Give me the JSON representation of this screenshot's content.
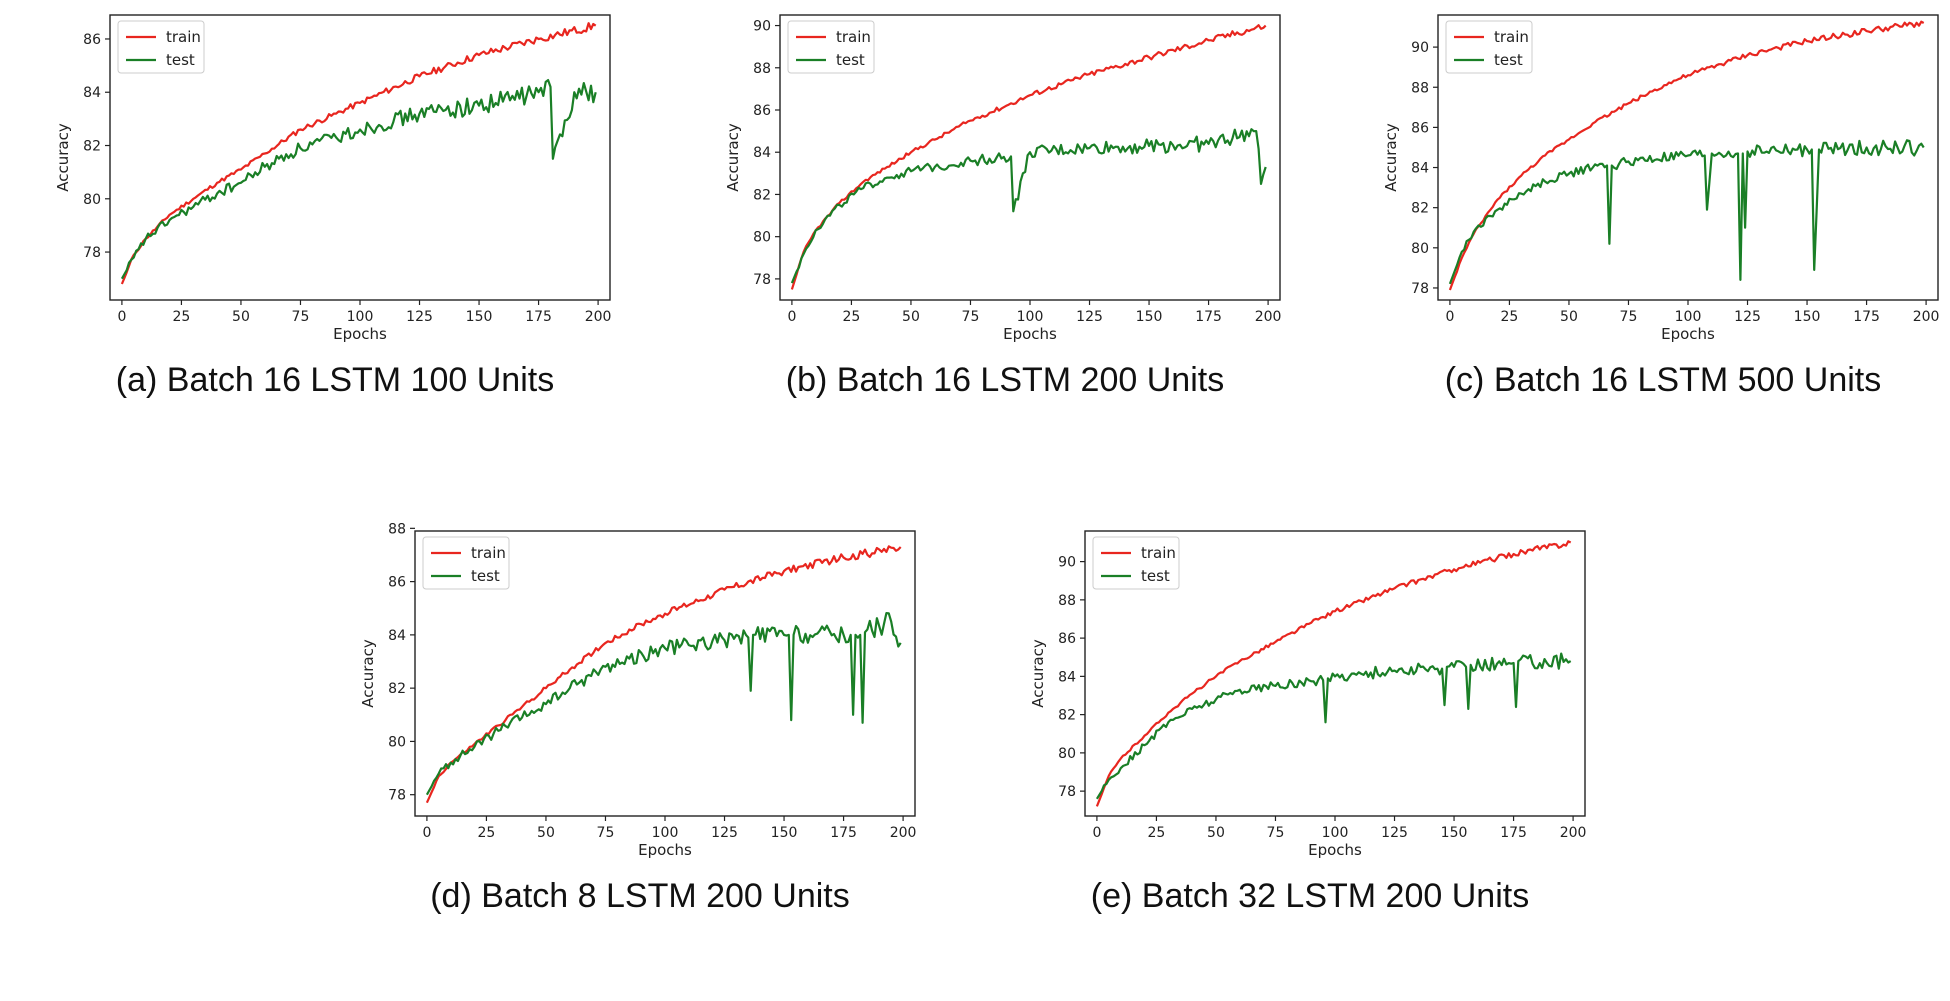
{
  "chart_data": [
    {
      "type": "line",
      "caption": "(a) Batch 16 LSTM 100 Units",
      "xlabel": "Epochs",
      "ylabel": "Accuracy",
      "xlim": [
        -5,
        205
      ],
      "ylim": [
        76.2,
        86.9
      ],
      "xticks": [
        0,
        25,
        50,
        75,
        100,
        125,
        150,
        175,
        200
      ],
      "yticks": [
        78,
        80,
        82,
        84,
        86
      ],
      "legend": "top-left",
      "series": [
        {
          "name": "train",
          "color": "#e8261f",
          "x": [
            0,
            5,
            10,
            20,
            30,
            40,
            50,
            60,
            75,
            90,
            100,
            125,
            150,
            175,
            199
          ],
          "y": [
            76.8,
            77.9,
            78.5,
            79.4,
            80.0,
            80.6,
            81.1,
            81.7,
            82.6,
            83.2,
            83.6,
            84.6,
            85.4,
            86.0,
            86.5
          ]
        },
        {
          "name": "test",
          "color": "#1a7f26",
          "x": [
            0,
            5,
            10,
            20,
            30,
            40,
            50,
            60,
            75,
            90,
            100,
            125,
            150,
            175,
            180,
            181,
            190,
            199
          ],
          "y": [
            77.0,
            77.8,
            78.5,
            79.2,
            79.7,
            80.2,
            80.6,
            81.2,
            81.9,
            82.3,
            82.6,
            83.2,
            83.5,
            84.0,
            84.2,
            81.5,
            84.0,
            84.0
          ]
        }
      ]
    },
    {
      "type": "line",
      "caption": "(b) Batch 16 LSTM 200 Units",
      "xlabel": "Epochs",
      "ylabel": "Accuracy",
      "xlim": [
        -5,
        205
      ],
      "ylim": [
        77.0,
        90.5
      ],
      "xticks": [
        0,
        25,
        50,
        75,
        100,
        125,
        150,
        175,
        200
      ],
      "yticks": [
        78,
        80,
        82,
        84,
        86,
        88,
        90
      ],
      "legend": "top-left",
      "series": [
        {
          "name": "train",
          "color": "#e8261f",
          "x": [
            0,
            5,
            10,
            20,
            30,
            40,
            50,
            60,
            75,
            90,
            100,
            125,
            150,
            175,
            199
          ],
          "y": [
            77.5,
            79.3,
            80.3,
            81.6,
            82.6,
            83.3,
            84.0,
            84.6,
            85.5,
            86.2,
            86.7,
            87.7,
            88.5,
            89.3,
            90.0
          ]
        },
        {
          "name": "test",
          "color": "#1a7f26",
          "x": [
            0,
            5,
            10,
            20,
            30,
            40,
            50,
            60,
            75,
            92,
            93,
            100,
            125,
            150,
            175,
            195,
            197,
            199
          ],
          "y": [
            77.8,
            79.2,
            80.3,
            81.5,
            82.3,
            82.8,
            83.1,
            83.3,
            83.6,
            83.8,
            81.2,
            84.0,
            84.2,
            84.3,
            84.4,
            85.0,
            82.5,
            83.3
          ]
        }
      ]
    },
    {
      "type": "line",
      "caption": "(c) Batch 16 LSTM 500 Units",
      "xlabel": "Epochs",
      "ylabel": "Accuracy",
      "xlim": [
        -5,
        205
      ],
      "ylim": [
        77.4,
        91.6
      ],
      "xticks": [
        0,
        25,
        50,
        75,
        100,
        125,
        150,
        175,
        200
      ],
      "yticks": [
        78,
        80,
        82,
        84,
        86,
        88,
        90
      ],
      "legend": "top-left",
      "series": [
        {
          "name": "train",
          "color": "#e8261f",
          "x": [
            0,
            5,
            10,
            20,
            30,
            40,
            50,
            60,
            75,
            90,
            100,
            125,
            150,
            175,
            199
          ],
          "y": [
            77.9,
            79.5,
            80.7,
            82.4,
            83.6,
            84.6,
            85.4,
            86.2,
            87.2,
            88.1,
            88.6,
            89.6,
            90.3,
            90.8,
            91.2
          ]
        },
        {
          "name": "test",
          "color": "#1a7f26",
          "x": [
            0,
            5,
            10,
            20,
            30,
            40,
            50,
            60,
            66,
            67,
            68,
            75,
            100,
            107,
            108,
            110,
            121,
            122,
            123,
            124,
            125,
            150,
            152,
            153,
            155,
            175,
            199
          ],
          "y": [
            78.2,
            79.8,
            80.8,
            81.9,
            82.7,
            83.3,
            83.7,
            84.0,
            84.1,
            80.2,
            84.1,
            84.3,
            84.6,
            84.6,
            81.9,
            84.7,
            84.7,
            78.4,
            84.7,
            81.0,
            84.8,
            84.9,
            84.9,
            78.9,
            84.9,
            85.0,
            85.0
          ]
        }
      ]
    },
    {
      "type": "line",
      "caption": "(d) Batch 8 LSTM 200 Units",
      "xlabel": "Epochs",
      "ylabel": "Accuracy",
      "xlim": [
        -5,
        205
      ],
      "ylim": [
        77.2,
        87.9
      ],
      "xticks": [
        0,
        25,
        50,
        75,
        100,
        125,
        150,
        175,
        200
      ],
      "yticks": [
        78,
        80,
        82,
        84,
        86,
        88
      ],
      "legend": "top-left",
      "series": [
        {
          "name": "train",
          "color": "#e8261f",
          "x": [
            0,
            5,
            10,
            20,
            30,
            40,
            50,
            60,
            75,
            90,
            100,
            125,
            150,
            175,
            199
          ],
          "y": [
            77.7,
            78.7,
            79.2,
            79.9,
            80.6,
            81.3,
            82.0,
            82.7,
            83.7,
            84.4,
            84.8,
            85.7,
            86.4,
            86.9,
            87.3
          ]
        },
        {
          "name": "test",
          "color": "#1a7f26",
          "x": [
            0,
            5,
            10,
            20,
            30,
            40,
            50,
            60,
            75,
            100,
            125,
            135,
            136,
            137,
            150,
            152,
            153,
            154,
            175,
            178,
            179,
            180,
            182,
            183,
            184,
            195,
            199
          ],
          "y": [
            78.0,
            78.8,
            79.2,
            79.8,
            80.4,
            80.9,
            81.4,
            82.0,
            82.8,
            83.5,
            83.8,
            83.9,
            81.9,
            84.0,
            84.0,
            84.0,
            80.8,
            84.0,
            84.0,
            84.0,
            81.0,
            84.0,
            84.0,
            80.7,
            84.1,
            84.5,
            83.7
          ]
        }
      ]
    },
    {
      "type": "line",
      "caption": "(e) Batch 32 LSTM 200 Units",
      "xlabel": "Epochs",
      "ylabel": "Accuracy",
      "xlim": [
        -5,
        205
      ],
      "ylim": [
        76.7,
        91.6
      ],
      "xticks": [
        0,
        25,
        50,
        75,
        100,
        125,
        150,
        175,
        200
      ],
      "yticks": [
        78,
        80,
        82,
        84,
        86,
        88,
        90
      ],
      "legend": "top-left",
      "series": [
        {
          "name": "train",
          "color": "#e8261f",
          "x": [
            0,
            5,
            10,
            20,
            30,
            40,
            50,
            60,
            75,
            90,
            100,
            125,
            150,
            175,
            199
          ],
          "y": [
            77.2,
            78.8,
            79.7,
            80.9,
            82.1,
            83.1,
            84.0,
            84.8,
            85.8,
            86.8,
            87.4,
            88.6,
            89.6,
            90.4,
            91.0
          ]
        },
        {
          "name": "test",
          "color": "#1a7f26",
          "x": [
            0,
            5,
            10,
            20,
            30,
            40,
            50,
            60,
            75,
            95,
            96,
            97,
            100,
            125,
            145,
            146,
            147,
            150,
            155,
            156,
            157,
            175,
            176,
            177,
            199
          ],
          "y": [
            77.6,
            78.6,
            79.2,
            80.4,
            81.6,
            82.3,
            82.8,
            83.3,
            83.5,
            83.8,
            81.6,
            83.9,
            84.0,
            84.3,
            84.4,
            82.5,
            84.5,
            84.5,
            84.5,
            82.3,
            84.6,
            84.7,
            82.4,
            84.8,
            84.8
          ]
        }
      ]
    }
  ]
}
